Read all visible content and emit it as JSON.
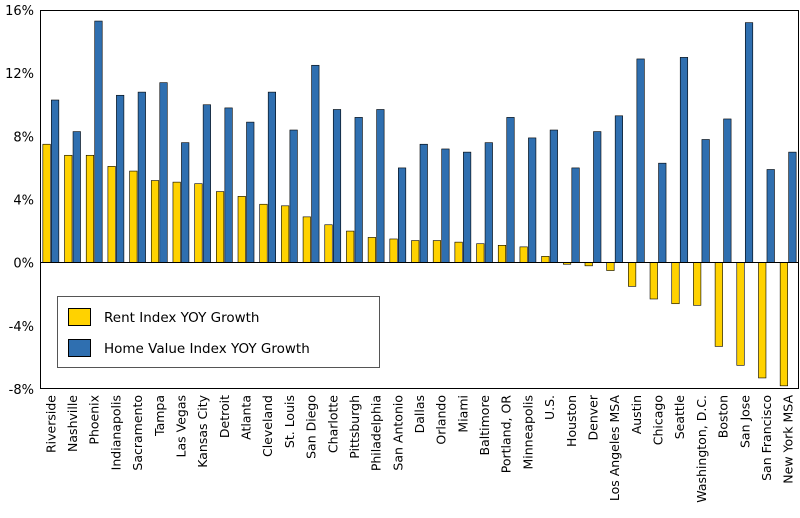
{
  "chart_data": {
    "type": "bar",
    "title": "",
    "xlabel": "",
    "ylabel": "",
    "ylim": [
      -8,
      16
    ],
    "yticks": [
      "16%",
      "12%",
      "8%",
      "4%",
      "0%",
      "-4%",
      "-8%"
    ],
    "ytick_values": [
      16,
      12,
      8,
      4,
      0,
      -4,
      -8
    ],
    "grid": false,
    "legend_position": "bottom-left",
    "categories": [
      "Riverside",
      "Nashville",
      "Phoenix",
      "Indianapolis",
      "Sacramento",
      "Tampa",
      "Las Vegas",
      "Kansas City",
      "Detroit",
      "Atlanta",
      "Cleveland",
      "St. Louis",
      "San Diego",
      "Charlotte",
      "Pittsburgh",
      "Philadelphia",
      "San Antonio",
      "Dallas",
      "Orlando",
      "Miami",
      "Baltimore",
      "Portland, OR",
      "Minneapolis",
      "U.S.",
      "Houston",
      "Denver",
      "Los Angeles MSA",
      "Austin",
      "Chicago",
      "Seattle",
      "Washington, D.C.",
      "Boston",
      "San Jose",
      "San Francisco",
      "New York MSA"
    ],
    "series": [
      {
        "name": "Rent Index YOY Growth",
        "color": "#FFD200",
        "values": [
          7.5,
          6.8,
          6.8,
          6.1,
          5.8,
          5.2,
          5.1,
          5.0,
          4.5,
          4.2,
          3.7,
          3.6,
          2.9,
          2.4,
          2.0,
          1.6,
          1.5,
          1.4,
          1.4,
          1.3,
          1.2,
          1.1,
          1.0,
          0.4,
          -0.1,
          -0.2,
          -0.5,
          -1.5,
          -2.3,
          -2.6,
          -2.7,
          -5.3,
          -6.5,
          -7.3,
          -7.8
        ]
      },
      {
        "name": "Home Value Index YOY Growth",
        "color": "#2F6FB0",
        "values": [
          10.3,
          8.3,
          15.3,
          10.6,
          10.8,
          11.4,
          7.6,
          10.0,
          9.8,
          8.9,
          10.8,
          8.4,
          12.5,
          9.7,
          9.2,
          9.7,
          6.0,
          7.5,
          7.2,
          7.0,
          7.6,
          9.2,
          7.9,
          8.4,
          6.0,
          8.3,
          9.3,
          12.9,
          6.3,
          13.0,
          7.8,
          9.1,
          15.2,
          5.9,
          7.0
        ]
      }
    ]
  }
}
